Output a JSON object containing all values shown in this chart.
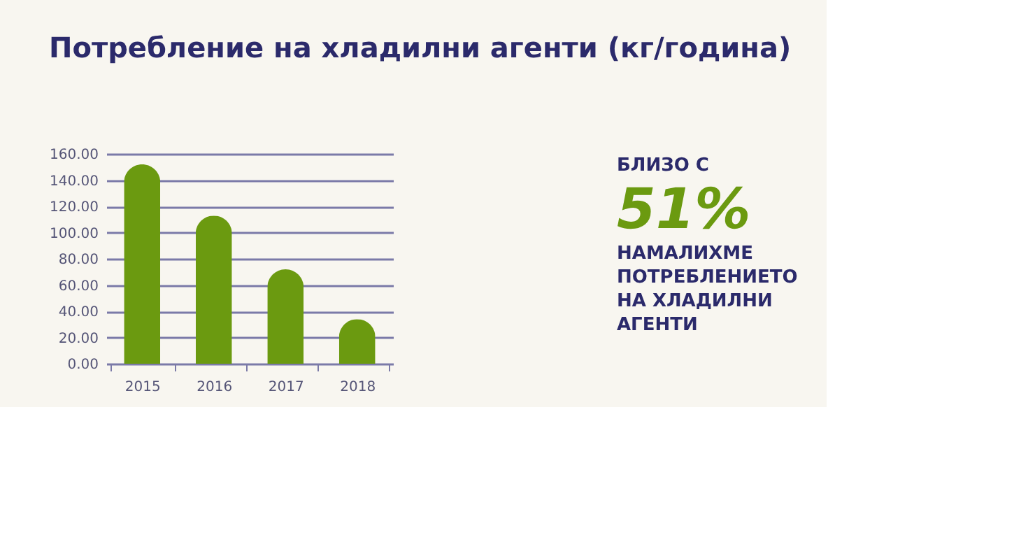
{
  "chart_data": [
    {
      "type": "bar",
      "title": "Потребление на хладилни агенти (кг/година)",
      "categories": [
        "2015",
        "2016",
        "2017",
        "2018"
      ],
      "values": [
        152,
        113,
        72,
        34
      ],
      "color": "#6b9a10",
      "ylim": [
        0,
        160
      ],
      "yticks": [
        {
          "value": 0,
          "label": "0.00"
        },
        {
          "value": 20,
          "label": "20.00"
        },
        {
          "value": 40,
          "label": "40.00"
        },
        {
          "value": 60,
          "label": "60.00"
        },
        {
          "value": 80,
          "label": "80.00"
        },
        {
          "value": 100,
          "label": "100.00"
        },
        {
          "value": 120,
          "label": "120.00"
        },
        {
          "value": 140,
          "label": "140.00"
        },
        {
          "value": 160,
          "label": "160.00"
        }
      ],
      "grid": "y"
    },
    {
      "type": "other",
      "annotations": [
        "БЛИЗО С",
        "51%",
        "НАМАЛИХМЕ",
        "ПОТРЕБЛЕНИЕТО",
        "НА ХЛАДИЛНИ",
        "АГЕНТИ"
      ]
    }
  ]
}
